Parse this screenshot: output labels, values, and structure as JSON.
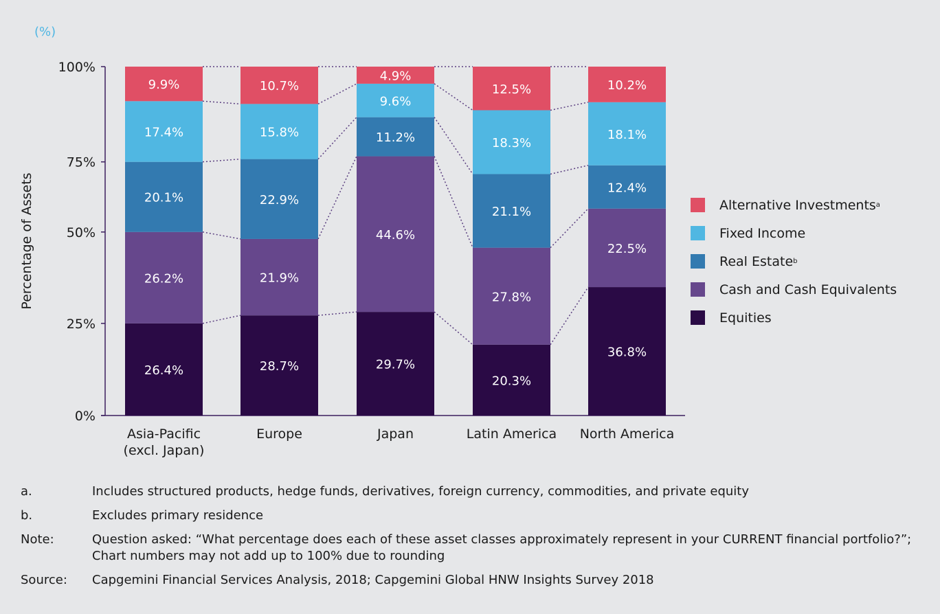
{
  "chart_data": {
    "type": "bar",
    "stacked": true,
    "unit_label": "(%)",
    "ylabel": "Percentage of Assets",
    "yticks": [
      "0%",
      "25%",
      "50%",
      "75%",
      "100%"
    ],
    "ylim": [
      0,
      100
    ],
    "categories": [
      "Asia-Pacific (excl. Japan)",
      "Europe",
      "Japan",
      "Latin America",
      "North America"
    ],
    "category_lines": [
      [
        "Asia-Pacific",
        "(excl. Japan)"
      ],
      [
        "Europe"
      ],
      [
        "Japan"
      ],
      [
        "Latin America"
      ],
      [
        "North America"
      ]
    ],
    "series": [
      {
        "name": "Equities",
        "color": "#2a0a45",
        "values": [
          26.4,
          28.7,
          29.7,
          20.3,
          36.8
        ],
        "labels": [
          "26.4%",
          "28.7%",
          "29.7%",
          "20.3%",
          "36.8%"
        ]
      },
      {
        "name": "Cash and Cash Equivalents",
        "color": "#66478c",
        "values": [
          26.2,
          21.9,
          44.6,
          27.8,
          22.5
        ],
        "labels": [
          "26.2%",
          "21.9%",
          "44.6%",
          "27.8%",
          "22.5%"
        ]
      },
      {
        "name": "Real Estate",
        "sup": "b",
        "color": "#337ab0",
        "values": [
          20.1,
          22.9,
          11.2,
          21.1,
          12.4
        ],
        "labels": [
          "20.1%",
          "22.9%",
          "11.2%",
          "21.1%",
          "12.4%"
        ]
      },
      {
        "name": "Fixed Income",
        "color": "#50b7e2",
        "values": [
          17.4,
          15.8,
          9.6,
          18.3,
          18.1
        ],
        "labels": [
          "17.4%",
          "15.8%",
          "9.6%",
          "18.3%",
          "18.1%"
        ]
      },
      {
        "name": "Alternative Investments",
        "sup": "a",
        "color": "#e04f65",
        "values": [
          9.9,
          10.7,
          4.9,
          12.5,
          10.2
        ],
        "labels": [
          "9.9%",
          "10.7%",
          "4.9%",
          "12.5%",
          "10.2%"
        ]
      }
    ],
    "legend_position": "right",
    "grid": false
  },
  "legend": [
    {
      "label": "Alternative Investments",
      "sup": "a",
      "color": "#e04f65"
    },
    {
      "label": "Fixed Income",
      "sup": "",
      "color": "#50b7e2"
    },
    {
      "label": "Real Estate",
      "sup": "b",
      "color": "#337ab0"
    },
    {
      "label": "Cash and Cash Equivalents",
      "sup": "",
      "color": "#66478c"
    },
    {
      "label": "Equities",
      "sup": "",
      "color": "#2a0a45"
    }
  ],
  "notes": [
    {
      "key": "a.",
      "text": "Includes structured products, hedge funds, derivatives, foreign currency, commodities, and private equity"
    },
    {
      "key": "b.",
      "text": "Excludes primary residence"
    },
    {
      "key": "Note:",
      "text": "Question asked: “What percentage does each of these asset classes approximately represent in your CURRENT financial portfolio?”; Chart numbers may not add up to 100% due to rounding"
    },
    {
      "key": "Source:",
      "text": "Capgemini Financial Services Analysis, 2018; Capgemini Global HNW Insights Survey 2018"
    }
  ]
}
